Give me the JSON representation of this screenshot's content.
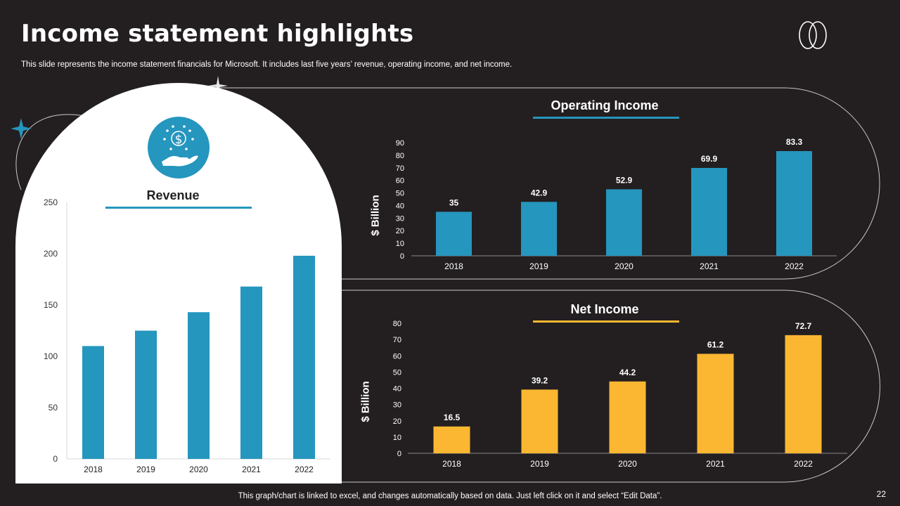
{
  "header": {
    "title": "Income statement highlights",
    "subtitle": "This slide represents the income statement financials for Microsoft. It includes last five years’ revenue, operating income, and net income."
  },
  "footer": {
    "note": "This graph/chart is linked to excel,  and changes automatically based on data. Just left click on it and select “Edit Data”.",
    "page_number": "22"
  },
  "icons": {
    "revenue": "money-hand-icon",
    "logo": "interlocked-rings-logo",
    "star": "four-point-star-icon"
  },
  "colors": {
    "background": "#231f20",
    "accent_blue": "#2596be",
    "accent_yellow": "#fbb731"
  },
  "chart_data": [
    {
      "id": "revenue",
      "type": "bar",
      "title": "Revenue",
      "categories": [
        "2018",
        "2019",
        "2020",
        "2021",
        "2022"
      ],
      "values": [
        110,
        125,
        143,
        168,
        198
      ],
      "ylabel": "",
      "ylim": [
        0,
        250
      ],
      "yticks": [
        0,
        50,
        100,
        150,
        200,
        250
      ],
      "data_labels": false,
      "color": "#2596be"
    },
    {
      "id": "operating",
      "type": "bar",
      "title": "Operating Income",
      "categories": [
        "2018",
        "2019",
        "2020",
        "2021",
        "2022"
      ],
      "values": [
        35,
        42.9,
        52.9,
        69.9,
        83.3
      ],
      "ylabel": "$ Billion",
      "ylim": [
        0,
        90
      ],
      "yticks": [
        0,
        10,
        20,
        30,
        40,
        50,
        60,
        70,
        80,
        90
      ],
      "data_labels": true,
      "color": "#2596be"
    },
    {
      "id": "net",
      "type": "bar",
      "title": "Net Income",
      "categories": [
        "2018",
        "2019",
        "2020",
        "2021",
        "2022"
      ],
      "values": [
        16.5,
        39.2,
        44.2,
        61.2,
        72.7
      ],
      "ylabel": "$ Billion",
      "ylim": [
        0,
        80
      ],
      "yticks": [
        0,
        10,
        20,
        30,
        40,
        50,
        60,
        70,
        80
      ],
      "data_labels": true,
      "color": "#fbb731"
    }
  ]
}
